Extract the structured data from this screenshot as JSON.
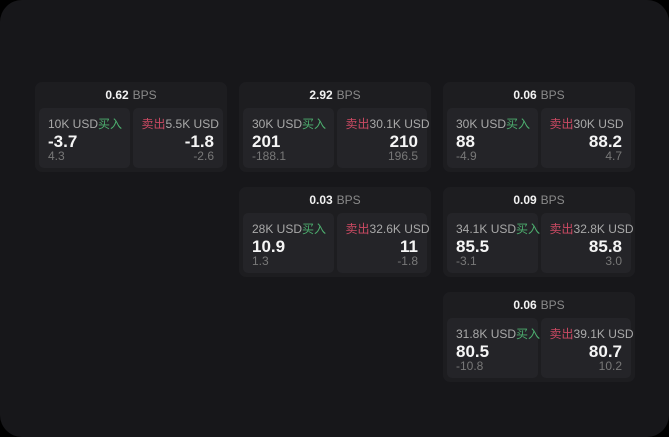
{
  "labels": {
    "bps_unit": "BPS",
    "buy": "买入",
    "sell": "卖出"
  },
  "colors": {
    "buy_accent": "#4daf6f",
    "sell_accent": "#cb4a63",
    "window_bg": "#17171a",
    "card_bg": "#1d1d20",
    "subcard_bg": "#242428"
  },
  "cards": [
    {
      "bps": "0.62",
      "buy": {
        "size": "10K USD",
        "price": "-3.7",
        "delta": "4.3"
      },
      "sell": {
        "size": "5.5K USD",
        "price": "-1.8",
        "delta": "-2.6"
      }
    },
    {
      "bps": "2.92",
      "buy": {
        "size": "30K USD",
        "price": "201",
        "delta": "-188.1"
      },
      "sell": {
        "size": "30.1K USD",
        "price": "210",
        "delta": "196.5"
      }
    },
    {
      "bps": "0.06",
      "buy": {
        "size": "30K USD",
        "price": "88",
        "delta": "-4.9"
      },
      "sell": {
        "size": "30K USD",
        "price": "88.2",
        "delta": "4.7"
      }
    },
    {
      "bps": "0.03",
      "buy": {
        "size": "28K USD",
        "price": "10.9",
        "delta": "1.3"
      },
      "sell": {
        "size": "32.6K USD",
        "price": "11",
        "delta": "-1.8"
      }
    },
    {
      "bps": "0.09",
      "buy": {
        "size": "34.1K USD",
        "price": "85.5",
        "delta": "-3.1"
      },
      "sell": {
        "size": "32.8K USD",
        "price": "85.8",
        "delta": "3.0"
      }
    },
    {
      "bps": "0.06",
      "buy": {
        "size": "31.8K USD",
        "price": "80.5",
        "delta": "-10.8"
      },
      "sell": {
        "size": "39.1K USD",
        "price": "80.7",
        "delta": "10.2"
      }
    }
  ]
}
